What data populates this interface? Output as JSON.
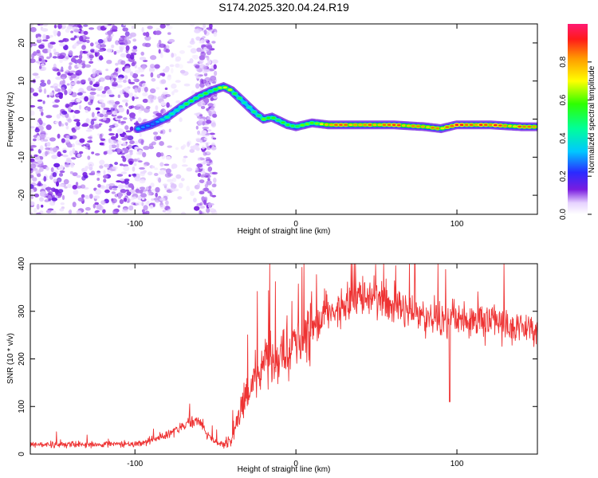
{
  "title": "S174.2025.320.04.24.R19",
  "chart_data": [
    {
      "type": "heatmap",
      "xlabel": "Height of straight line (km)",
      "ylabel": "Frequency (Hz)",
      "xlim": [
        -165,
        150
      ],
      "ylim": [
        -25,
        25
      ],
      "xticks": [
        -100,
        0,
        100
      ],
      "yticks": [
        -20,
        -10,
        0,
        10,
        20
      ],
      "colorbar": {
        "label": "Normalized spectral amplitude",
        "range": [
          0,
          1
        ],
        "ticks": [
          "0.0",
          "0.2",
          "0.4",
          "0.6",
          "0.8"
        ],
        "tick_values": [
          0,
          0.2,
          0.4,
          0.6,
          0.8
        ]
      },
      "ridge": {
        "x": [
          -98,
          -90,
          -80,
          -70,
          -60,
          -52,
          -45,
          -40,
          -35,
          -30,
          -25,
          -20,
          -15,
          -10,
          -5,
          0,
          5,
          10,
          20,
          40,
          60,
          80,
          90,
          100,
          120,
          140,
          150
        ],
        "freq": [
          -2.5,
          -1.5,
          0.5,
          3.5,
          6,
          7.5,
          8.5,
          7.5,
          5.5,
          3.5,
          1.5,
          0,
          0.5,
          -0.5,
          -1.5,
          -2,
          -1.5,
          -1,
          -1.5,
          -1.5,
          -1.5,
          -2,
          -2.5,
          -1.5,
          -1.5,
          -2,
          -2
        ],
        "amp": [
          0.35,
          0.3,
          0.45,
          0.5,
          0.6,
          0.55,
          0.7,
          0.65,
          0.5,
          0.45,
          0.55,
          0.6,
          0.55,
          0.6,
          0.55,
          0.5,
          0.6,
          0.65,
          0.8,
          0.9,
          0.9,
          0.85,
          0.8,
          0.9,
          0.9,
          0.85,
          0.8
        ]
      }
    },
    {
      "type": "line",
      "xlabel": "Height of straight line (km)",
      "ylabel": "SNR (10 * v/v)",
      "xlim": [
        -165,
        150
      ],
      "ylim": [
        0,
        400
      ],
      "xticks": [
        -100,
        0,
        100
      ],
      "yticks": [
        0,
        100,
        200,
        300,
        400
      ],
      "series": [
        {
          "name": "SNR",
          "color": "#ee3333",
          "envelope_x": [
            -165,
            -120,
            -100,
            -90,
            -80,
            -70,
            -60,
            -55,
            -50,
            -45,
            -40,
            -35,
            -30,
            -20,
            -10,
            0,
            10,
            20,
            30,
            40,
            50,
            60,
            70,
            80,
            90,
            100,
            110,
            120,
            130,
            140,
            150
          ],
          "envelope_y": [
            20,
            20,
            22,
            28,
            40,
            60,
            70,
            40,
            25,
            22,
            30,
            90,
            130,
            190,
            210,
            230,
            270,
            300,
            320,
            330,
            320,
            315,
            300,
            290,
            280,
            285,
            280,
            275,
            270,
            265,
            260
          ]
        }
      ]
    }
  ],
  "colors": {
    "line": "#ee3333",
    "axis": "#000000",
    "background": "#ffffff"
  }
}
